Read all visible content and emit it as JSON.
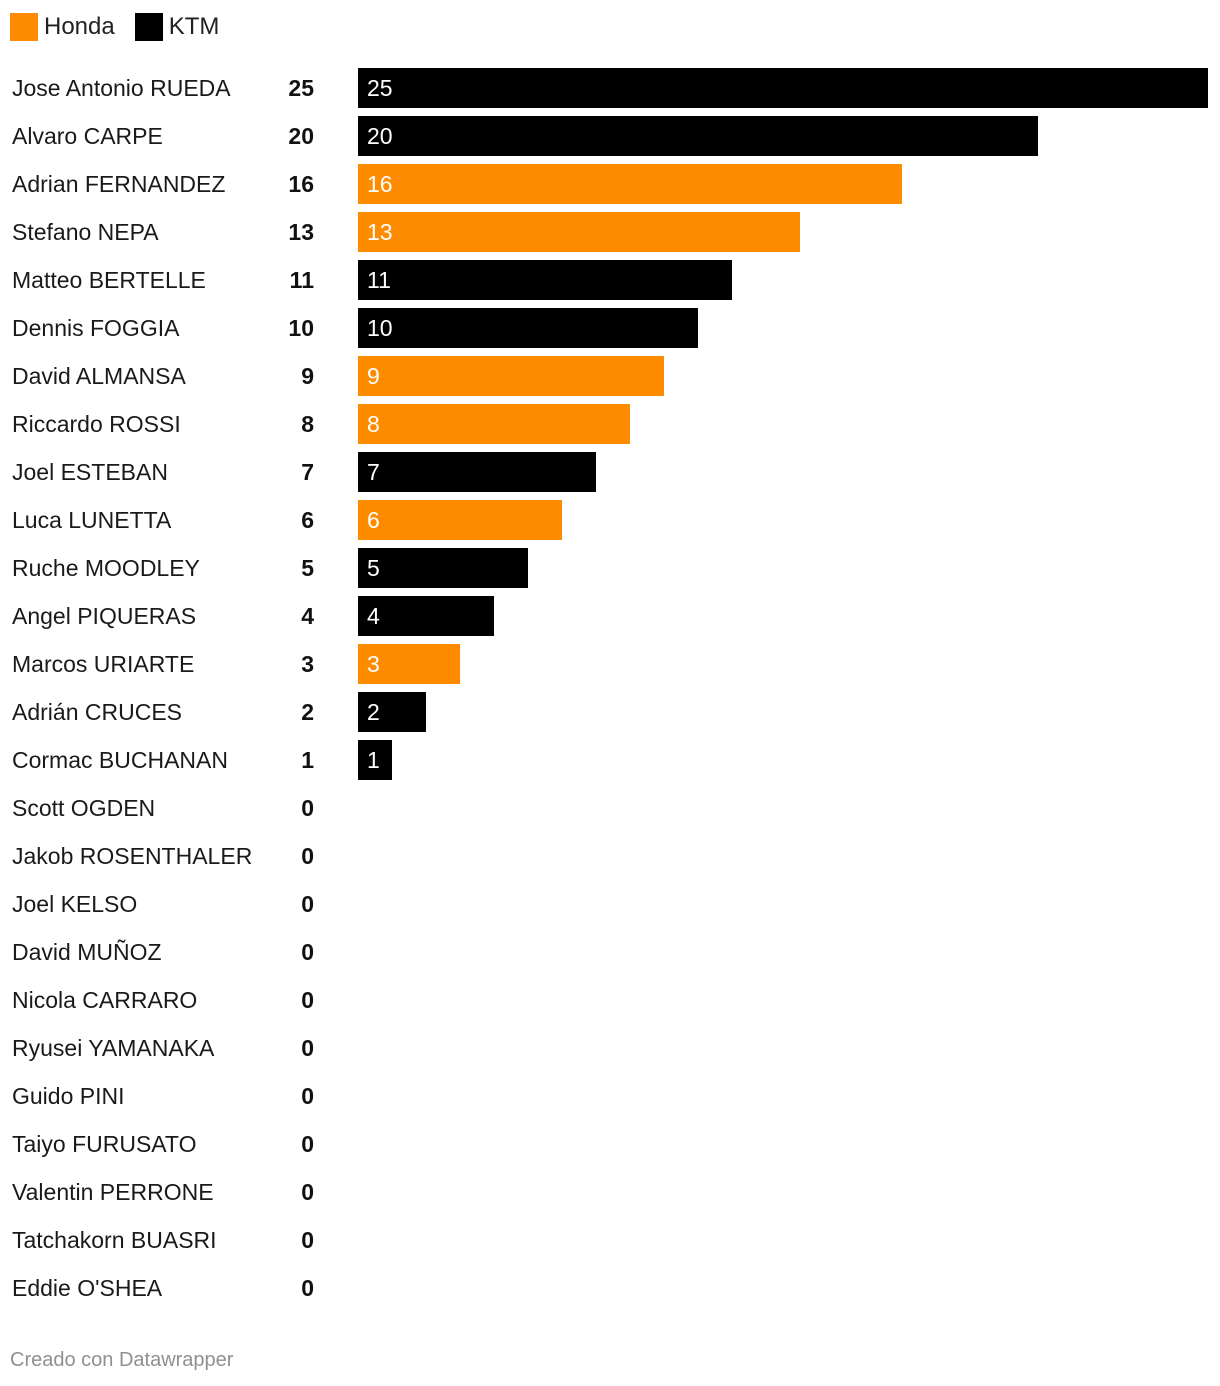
{
  "legend": [
    {
      "name": "Honda",
      "color": "#ff8c00"
    },
    {
      "name": "KTM",
      "color": "#000000"
    }
  ],
  "chart_data": {
    "type": "bar",
    "orientation": "horizontal",
    "xlim": [
      0,
      25
    ],
    "grid": false,
    "legend_position": "top-left",
    "categories": [
      "Jose Antonio RUEDA",
      "Alvaro CARPE",
      "Adrian FERNANDEZ",
      "Stefano NEPA",
      "Matteo BERTELLE",
      "Dennis FOGGIA",
      "David ALMANSA",
      "Riccardo ROSSI",
      "Joel ESTEBAN",
      "Luca LUNETTA",
      "Ruche MOODLEY",
      "Angel PIQUERAS",
      "Marcos URIARTE",
      "Adrián CRUCES",
      "Cormac BUCHANAN",
      "Scott OGDEN",
      "Jakob ROSENTHALER",
      "Joel KELSO",
      "David MUÑOZ",
      "Nicola CARRARO",
      "Ryusei YAMANAKA",
      "Guido PINI",
      "Taiyo FURUSATO",
      "Valentin PERRONE",
      "Tatchakorn BUASRI",
      "Eddie O'SHEA"
    ],
    "values": [
      25,
      20,
      16,
      13,
      11,
      10,
      9,
      8,
      7,
      6,
      5,
      4,
      3,
      2,
      1,
      0,
      0,
      0,
      0,
      0,
      0,
      0,
      0,
      0,
      0,
      0
    ],
    "manufacturer": [
      "KTM",
      "KTM",
      "Honda",
      "Honda",
      "KTM",
      "KTM",
      "Honda",
      "Honda",
      "KTM",
      "Honda",
      "KTM",
      "KTM",
      "Honda",
      "KTM",
      "KTM",
      "",
      "",
      "",
      "",
      "",
      "",
      "",
      "",
      "",
      "",
      ""
    ]
  },
  "footer": {
    "credit": "Creado con Datawrapper"
  }
}
